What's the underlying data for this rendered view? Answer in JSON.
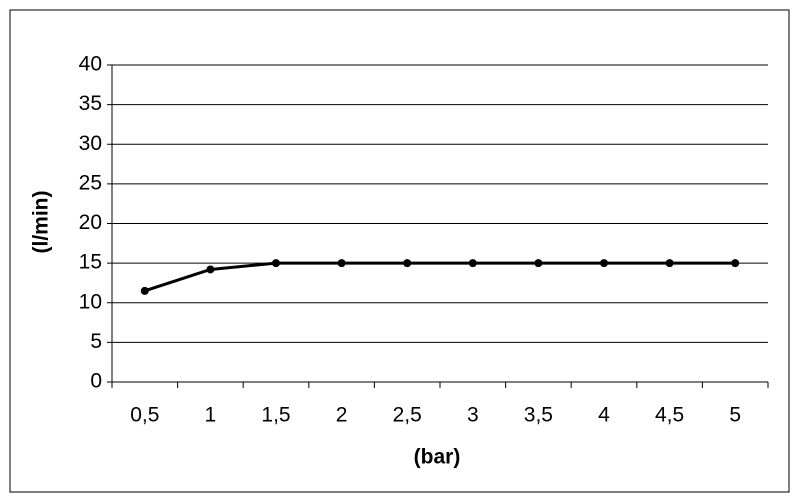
{
  "chart_data": {
    "type": "line",
    "x_label": "(bar)",
    "y_label": "(l/min)",
    "categories": [
      "0,5",
      "1",
      "1,5",
      "2",
      "2,5",
      "3",
      "3,5",
      "4",
      "4,5",
      "5"
    ],
    "series": [
      {
        "color": "#000000",
        "values": [
          11.5,
          14.2,
          15,
          15,
          15,
          15,
          15,
          15,
          15,
          15
        ]
      }
    ],
    "ylim": [
      0,
      40
    ],
    "yticks": [
      0,
      5,
      10,
      15,
      20,
      25,
      30,
      35,
      40
    ],
    "grid": true
  }
}
